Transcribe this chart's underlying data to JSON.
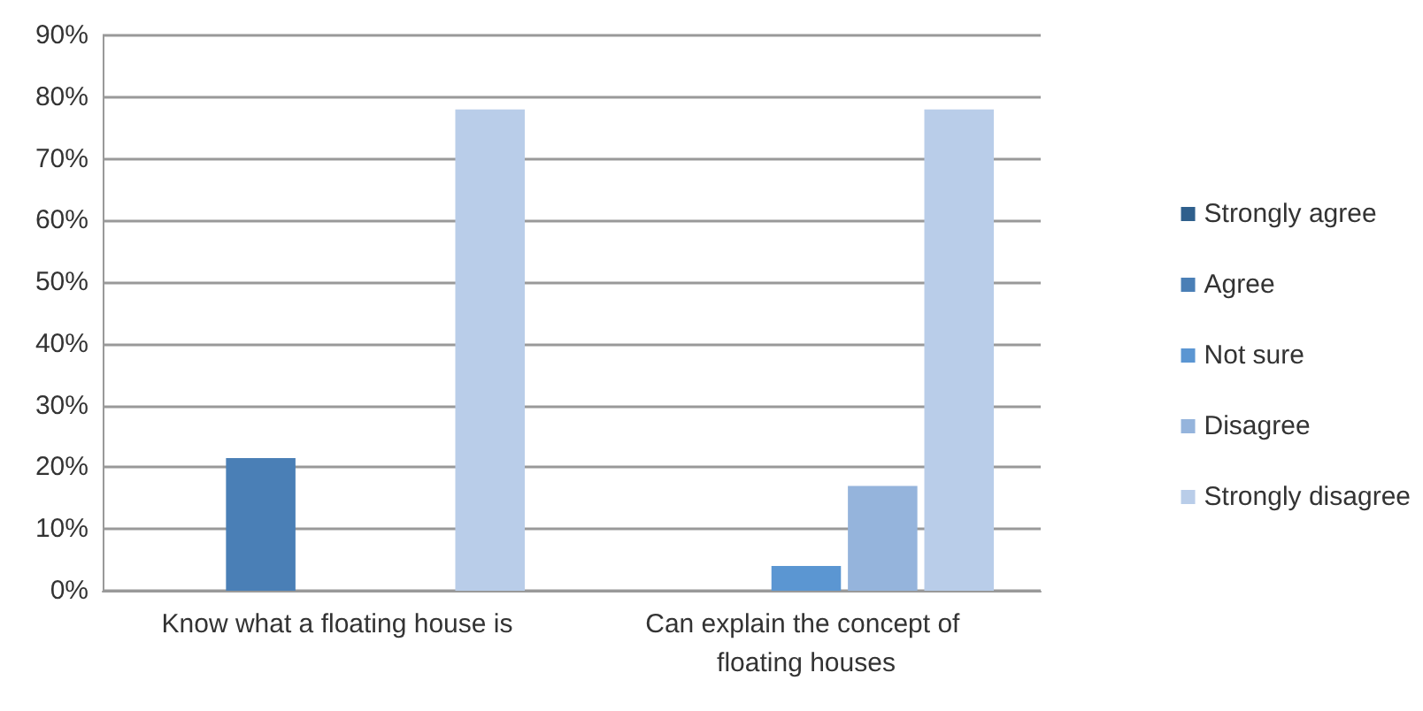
{
  "chart_data": {
    "type": "bar",
    "categories": [
      "Know what a floating house is",
      "Can explain the concept of floating houses"
    ],
    "series": [
      {
        "name": "Strongly agree",
        "color": "#2f5f8c",
        "values": [
          0,
          0
        ]
      },
      {
        "name": "Agree",
        "color": "#4a7fb6",
        "values": [
          21.5,
          0
        ]
      },
      {
        "name": "Not sure",
        "color": "#5b96d2",
        "values": [
          0,
          4
        ]
      },
      {
        "name": "Disagree",
        "color": "#95b4dc",
        "values": [
          0,
          17
        ]
      },
      {
        "name": "Strongly disagree",
        "color": "#b9cde9",
        "values": [
          78,
          78
        ]
      }
    ],
    "ylim": [
      0,
      90
    ],
    "yticks": [
      {
        "value": 0,
        "label": "0%"
      },
      {
        "value": 10,
        "label": "10%"
      },
      {
        "value": 20,
        "label": "20%"
      },
      {
        "value": 30,
        "label": "30%"
      },
      {
        "value": 40,
        "label": "40%"
      },
      {
        "value": 50,
        "label": "50%"
      },
      {
        "value": 60,
        "label": "60%"
      },
      {
        "value": 70,
        "label": "70%"
      },
      {
        "value": 80,
        "label": "80%"
      },
      {
        "value": 90,
        "label": "90%"
      }
    ],
    "grid": true,
    "legend": "right"
  }
}
